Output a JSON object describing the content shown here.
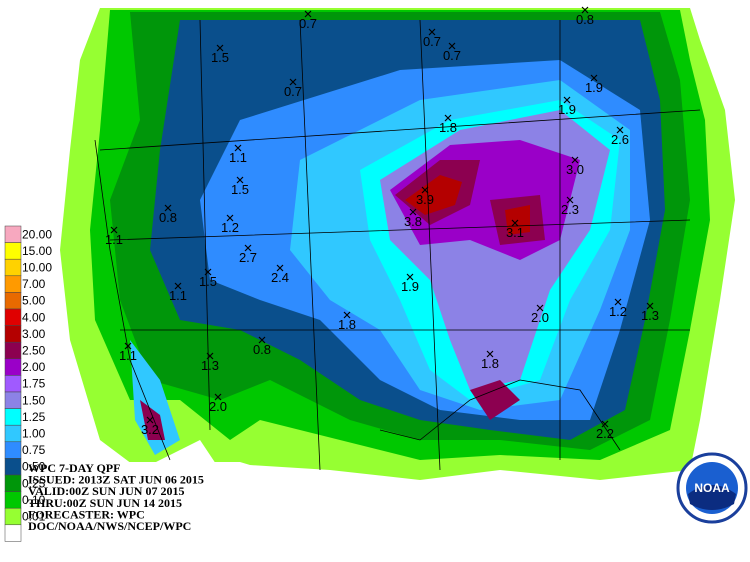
{
  "legend": {
    "items": [
      {
        "label": "20.00",
        "color": "#f7a8bf"
      },
      {
        "label": "15.00",
        "color": "#ffff00"
      },
      {
        "label": "10.00",
        "color": "#ffd200"
      },
      {
        "label": "7.00",
        "color": "#ff9a00"
      },
      {
        "label": "5.00",
        "color": "#e86a00"
      },
      {
        "label": "4.00",
        "color": "#e00000"
      },
      {
        "label": "3.00",
        "color": "#b40000"
      },
      {
        "label": "2.50",
        "color": "#8c0050"
      },
      {
        "label": "2.00",
        "color": "#9a00c8"
      },
      {
        "label": "1.75",
        "color": "#a05aff"
      },
      {
        "label": "1.50",
        "color": "#8c82e6"
      },
      {
        "label": "1.25",
        "color": "#00ffff"
      },
      {
        "label": "1.00",
        "color": "#30c8ff"
      },
      {
        "label": "0.75",
        "color": "#2f8cff"
      },
      {
        "label": "0.50",
        "color": "#0a4f8c"
      },
      {
        "label": "0.25",
        "color": "#00960a"
      },
      {
        "label": "0.10",
        "color": "#00c800"
      },
      {
        "label": "0.01",
        "color": "#96ff32"
      }
    ],
    "blank_color": "#ffffff"
  },
  "points": [
    "0.7",
    "0.8",
    "1.5",
    "0.7",
    "0.7",
    "0.7",
    "1.9",
    "1.9",
    "1.8",
    "2.6",
    "1.1",
    "1.5",
    "3.0",
    "0.8",
    "3.9",
    "3.8",
    "1.2",
    "2.3",
    "3.1",
    "1.1",
    "2.7",
    "2.4",
    "1.5",
    "1.1",
    "1.9",
    "1.8",
    "2.0",
    "1.2",
    "1.3",
    "0.8",
    "1.1",
    "1.3",
    "1.8",
    "2.0",
    "3.2",
    "2.2"
  ],
  "info": {
    "lines": [
      "WPC 7-DAY QPF",
      "ISSUED: 2013Z SAT JUN 06 2015",
      "VALID:00Z SUN JUN 07 2015",
      "THRU:00Z SUN JUN 14 2015",
      "FORECASTER: WPC",
      "DOC/NOAA/NWS/NCEP/WPC"
    ]
  },
  "logo": {
    "text": "NOAA"
  }
}
